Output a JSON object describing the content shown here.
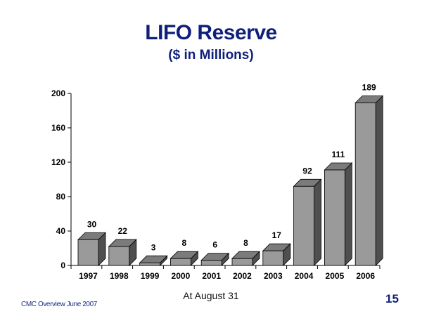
{
  "slide": {
    "title": "LIFO Reserve",
    "subtitle": "($ in Millions)",
    "footer_left": "CMC Overview  June 2007",
    "footer_center": "At August 31",
    "page_number": "15"
  },
  "colors": {
    "title": "#0f1f7a",
    "bar_front": "#9a9a9a",
    "bar_top": "#7b7b7b",
    "bar_side": "#4f4f4f"
  },
  "chart_data": {
    "type": "bar",
    "title": "LIFO Reserve",
    "subtitle": "($ in Millions)",
    "xlabel": "At August 31",
    "ylabel": "",
    "categories": [
      "1997",
      "1998",
      "1999",
      "2000",
      "2001",
      "2002",
      "2003",
      "2004",
      "2005",
      "2006"
    ],
    "values": [
      30,
      22,
      3,
      8,
      6,
      8,
      17,
      92,
      111,
      189
    ],
    "data_labels": [
      "30",
      "22",
      "3",
      "8",
      "6",
      "8",
      "17",
      "92",
      "111",
      "189"
    ],
    "ylim": [
      0,
      200
    ],
    "yticks": [
      0,
      40,
      80,
      120,
      160,
      200
    ],
    "grid": false,
    "style": "3d-bar"
  }
}
